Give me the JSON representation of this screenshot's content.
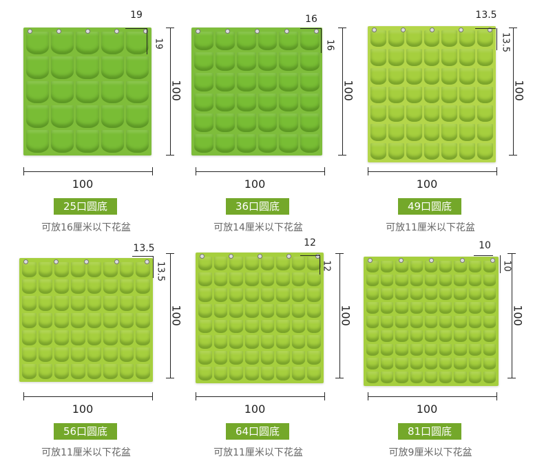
{
  "products": [
    {
      "pockets_label": "25口圆底",
      "caption": "可放16厘米以下花盆",
      "width": "100",
      "height": "100",
      "pocket_w": "19",
      "pocket_h": "19",
      "grid": 5
    },
    {
      "pockets_label": "36口圆底",
      "caption": "可放14厘米以下花盆",
      "width": "100",
      "height": "100",
      "pocket_w": "16",
      "pocket_h": "16",
      "grid": 6
    },
    {
      "pockets_label": "49口圆底",
      "caption": "可放11厘米以下花盆",
      "width": "100",
      "height": "100",
      "pocket_w": "13.5",
      "pocket_h": "13.5",
      "grid": 7
    },
    {
      "pockets_label": "56口圆底",
      "caption": "可放11厘米以下花盆",
      "width": "100",
      "height": "100",
      "pocket_w": "13.5",
      "pocket_h": "13.5",
      "grid_cols": 8,
      "grid_rows": 7
    },
    {
      "pockets_label": "64口圆底",
      "caption": "可放11厘米以下花盆",
      "width": "100",
      "height": "100",
      "pocket_w": "12",
      "pocket_h": "12",
      "grid": 8
    },
    {
      "pockets_label": "81口圆底",
      "caption": "可放9厘米以下花盆",
      "width": "100",
      "height": "100",
      "pocket_w": "10",
      "pocket_h": "10",
      "grid": 9
    }
  ],
  "colors": {
    "felt_green": "#8ed34a",
    "light_green": "#a6cf3e",
    "badge_green": "#74a82a"
  }
}
